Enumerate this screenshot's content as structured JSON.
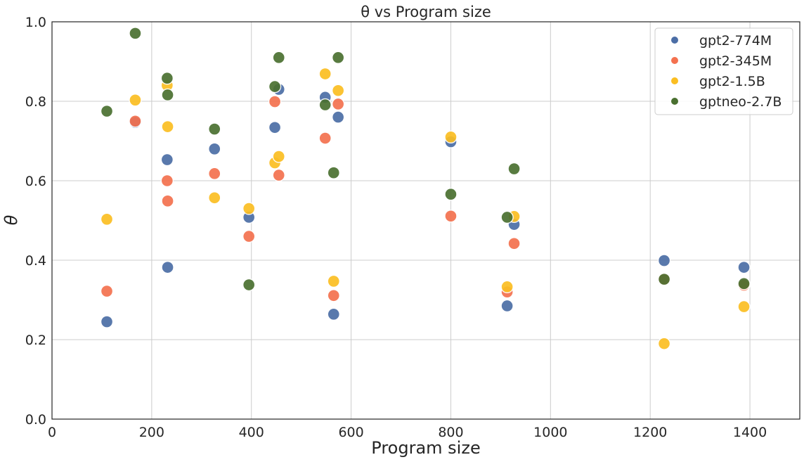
{
  "chart_data": {
    "type": "scatter",
    "title": "θ vs Program size",
    "xlabel": "Program size",
    "ylabel": "θ",
    "xlim": [
      0,
      1500
    ],
    "ylim": [
      0.0,
      1.0
    ],
    "xticks": [
      "0",
      "200",
      "400",
      "600",
      "800",
      "1000",
      "1200",
      "1400"
    ],
    "yticks": [
      "0.0",
      "0.2",
      "0.4",
      "0.6",
      "0.8",
      "1.0"
    ],
    "grid": true,
    "legend_position": "top-right",
    "x": [
      110,
      167,
      231,
      232,
      326,
      395,
      447,
      455,
      548,
      565,
      574,
      800,
      913,
      927,
      1228,
      1388
    ],
    "series": [
      {
        "name": "gpt2-774M",
        "color": "#4c6ea6",
        "values": [
          0.245,
          0.747,
          0.653,
          0.382,
          0.68,
          0.508,
          0.734,
          0.83,
          0.81,
          0.264,
          0.76,
          0.698,
          0.285,
          0.49,
          0.399,
          0.382
        ]
      },
      {
        "name": "gpt2-345M",
        "color": "#f4714f",
        "values": [
          0.322,
          0.75,
          0.6,
          0.549,
          0.618,
          0.46,
          0.799,
          0.614,
          0.707,
          0.311,
          0.793,
          0.511,
          0.32,
          0.442,
          0.352,
          0.337
        ]
      },
      {
        "name": "gpt2-1.5B",
        "color": "#fbbe22",
        "values": [
          0.503,
          0.803,
          0.84,
          0.736,
          0.557,
          0.53,
          0.645,
          0.661,
          0.869,
          0.347,
          0.827,
          0.71,
          0.333,
          0.51,
          0.19,
          0.283
        ]
      },
      {
        "name": "gptneo-2.7B",
        "color": "#4a7030",
        "values": [
          0.775,
          0.971,
          0.858,
          0.816,
          0.73,
          0.338,
          0.837,
          0.91,
          0.791,
          0.62,
          0.91,
          0.566,
          0.508,
          0.63,
          0.352,
          0.341
        ]
      }
    ]
  }
}
